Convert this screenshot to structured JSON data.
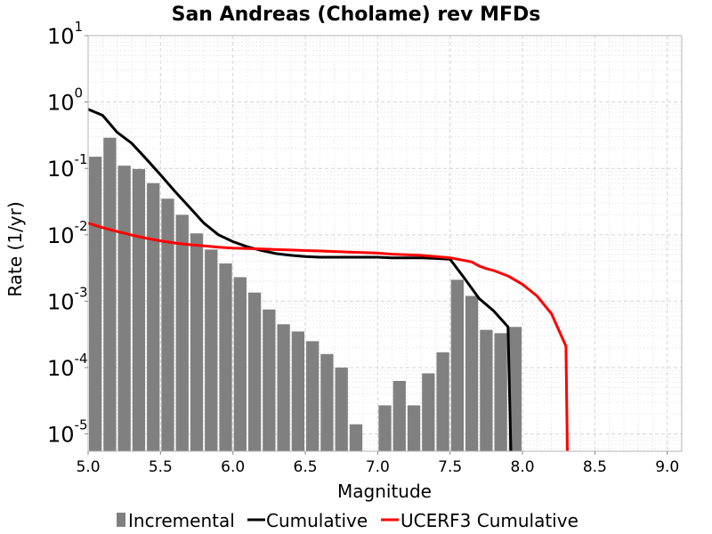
{
  "chart_data": {
    "type": "bar",
    "title": "San Andreas (Cholame) rev MFDs",
    "xlabel": "Magnitude",
    "ylabel": "Rate (1/yr)",
    "xlim": [
      5.0,
      9.1
    ],
    "ylim": [
      5.5e-06,
      10
    ],
    "y_scale": "log",
    "x_ticks": [
      "5.0",
      "5.5",
      "6.0",
      "6.5",
      "7.0",
      "7.5",
      "8.0",
      "8.5",
      "9.0"
    ],
    "x_tick_values": [
      5.0,
      5.5,
      6.0,
      6.5,
      7.0,
      7.5,
      8.0,
      8.5,
      9.0
    ],
    "y_ticks": [
      {
        "base": "10",
        "exp": "1",
        "value": 10
      },
      {
        "base": "10",
        "exp": "0",
        "value": 1
      },
      {
        "base": "10",
        "exp": "-1",
        "value": 0.1
      },
      {
        "base": "10",
        "exp": "-2",
        "value": 0.01
      },
      {
        "base": "10",
        "exp": "-3",
        "value": 0.001
      },
      {
        "base": "10",
        "exp": "-4",
        "value": 0.0001
      },
      {
        "base": "10",
        "exp": "-5",
        "value": 1e-05
      }
    ],
    "grid": true,
    "legend_position": "bottom",
    "series": [
      {
        "name": "Incremental",
        "type": "bar",
        "color": "#808080",
        "x": [
          5.05,
          5.15,
          5.25,
          5.35,
          5.45,
          5.55,
          5.65,
          5.75,
          5.85,
          5.95,
          6.05,
          6.15,
          6.25,
          6.35,
          6.45,
          6.55,
          6.65,
          6.75,
          6.85,
          6.95,
          7.05,
          7.15,
          7.25,
          7.35,
          7.45,
          7.55,
          7.65,
          7.75,
          7.85,
          7.95
        ],
        "values": [
          0.15,
          0.29,
          0.11,
          0.098,
          0.06,
          0.035,
          0.02,
          0.0105,
          0.006,
          0.0037,
          0.0023,
          0.00135,
          0.00075,
          0.00045,
          0.00035,
          0.00025,
          0.00016,
          0.0001,
          1.4e-05,
          0,
          2.7e-05,
          6.3e-05,
          2.7e-05,
          8.2e-05,
          0.00017,
          0.0021,
          0.0012,
          0.00037,
          0.00033,
          0.00041
        ]
      },
      {
        "name": "Cumulative",
        "type": "line",
        "color": "#000000",
        "x": [
          5.0,
          5.1,
          5.2,
          5.3,
          5.4,
          5.5,
          5.6,
          5.7,
          5.8,
          5.9,
          6.0,
          6.1,
          6.2,
          6.3,
          6.4,
          6.5,
          6.6,
          6.7,
          6.8,
          6.9,
          7.0,
          7.1,
          7.2,
          7.3,
          7.4,
          7.5,
          7.6,
          7.7,
          7.8,
          7.9,
          7.92
        ],
        "values": [
          0.78,
          0.63,
          0.35,
          0.24,
          0.14,
          0.08,
          0.045,
          0.026,
          0.015,
          0.01,
          0.0079,
          0.0066,
          0.0058,
          0.0052,
          0.0049,
          0.0047,
          0.0046,
          0.0046,
          0.0046,
          0.0046,
          0.0046,
          0.0045,
          0.0045,
          0.0045,
          0.0044,
          0.0043,
          0.0022,
          0.0011,
          0.00072,
          0.00041,
          5.5e-06
        ]
      },
      {
        "name": "UCERF3 Cumulative",
        "type": "line",
        "color": "#ff0000",
        "x": [
          5.0,
          5.1,
          5.2,
          5.3,
          5.4,
          5.5,
          5.6,
          5.7,
          5.8,
          5.9,
          6.0,
          6.1,
          6.2,
          6.3,
          6.4,
          6.5,
          6.6,
          6.7,
          6.8,
          6.9,
          7.0,
          7.1,
          7.2,
          7.3,
          7.4,
          7.5,
          7.6,
          7.65,
          7.7,
          7.75,
          7.8,
          7.9,
          8.0,
          8.1,
          8.2,
          8.3,
          8.31
        ],
        "values": [
          0.015,
          0.0128,
          0.0112,
          0.0099,
          0.0089,
          0.0081,
          0.0075,
          0.0071,
          0.0068,
          0.0065,
          0.0063,
          0.0062,
          0.0061,
          0.006,
          0.0059,
          0.0058,
          0.0057,
          0.0056,
          0.0055,
          0.0054,
          0.0053,
          0.0051,
          0.005,
          0.0049,
          0.0047,
          0.0045,
          0.0041,
          0.0039,
          0.0034,
          0.0031,
          0.0029,
          0.0024,
          0.0018,
          0.0012,
          0.00065,
          0.00021,
          5.5e-06
        ]
      }
    ]
  }
}
